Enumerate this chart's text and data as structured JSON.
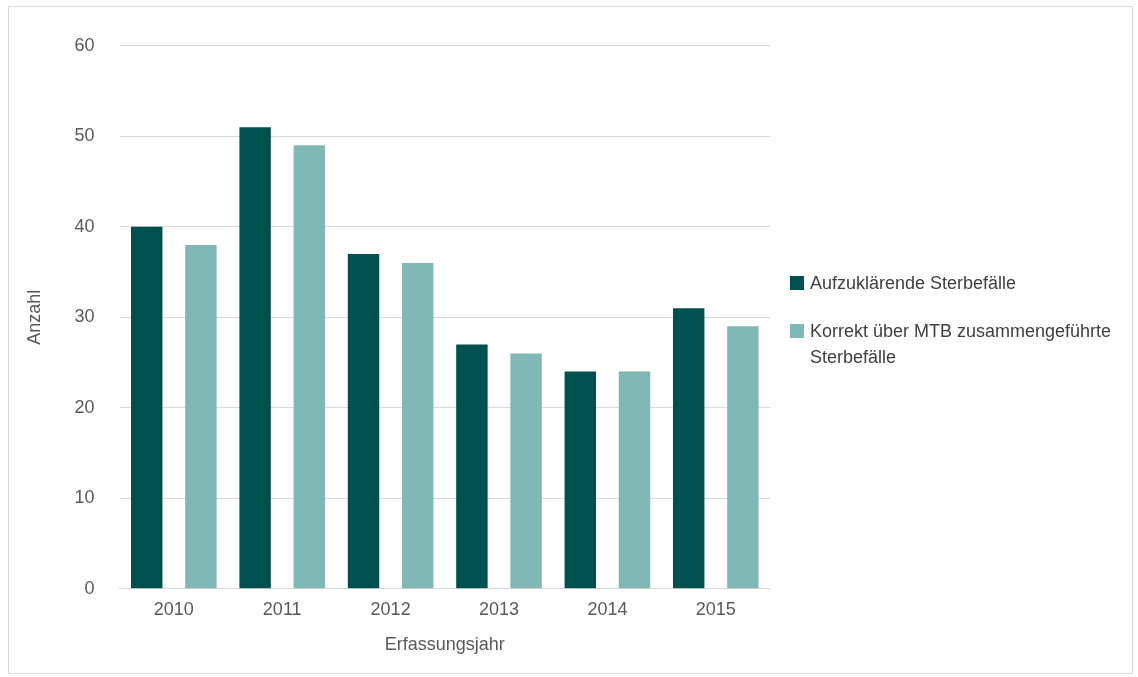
{
  "chart_data": {
    "type": "bar",
    "xlabel": "Erfassungsjahr",
    "ylabel": "Anzahl",
    "categories": [
      "2010",
      "2011",
      "2012",
      "2013",
      "2014",
      "2015"
    ],
    "series": [
      {
        "name": "Aufzuklärende Sterbefälle",
        "color": "#00504f",
        "values": [
          40,
          51,
          37,
          27,
          24,
          31
        ]
      },
      {
        "name": "Korrekt über MTB zusammengeführte Sterbefälle",
        "color": "#7fb8b4",
        "values": [
          38,
          49,
          36,
          26,
          24,
          29
        ]
      }
    ],
    "ylim": [
      0,
      60
    ],
    "yticks": [
      0,
      10,
      20,
      30,
      40,
      50,
      60
    ],
    "grid": "y",
    "legend": "right"
  }
}
